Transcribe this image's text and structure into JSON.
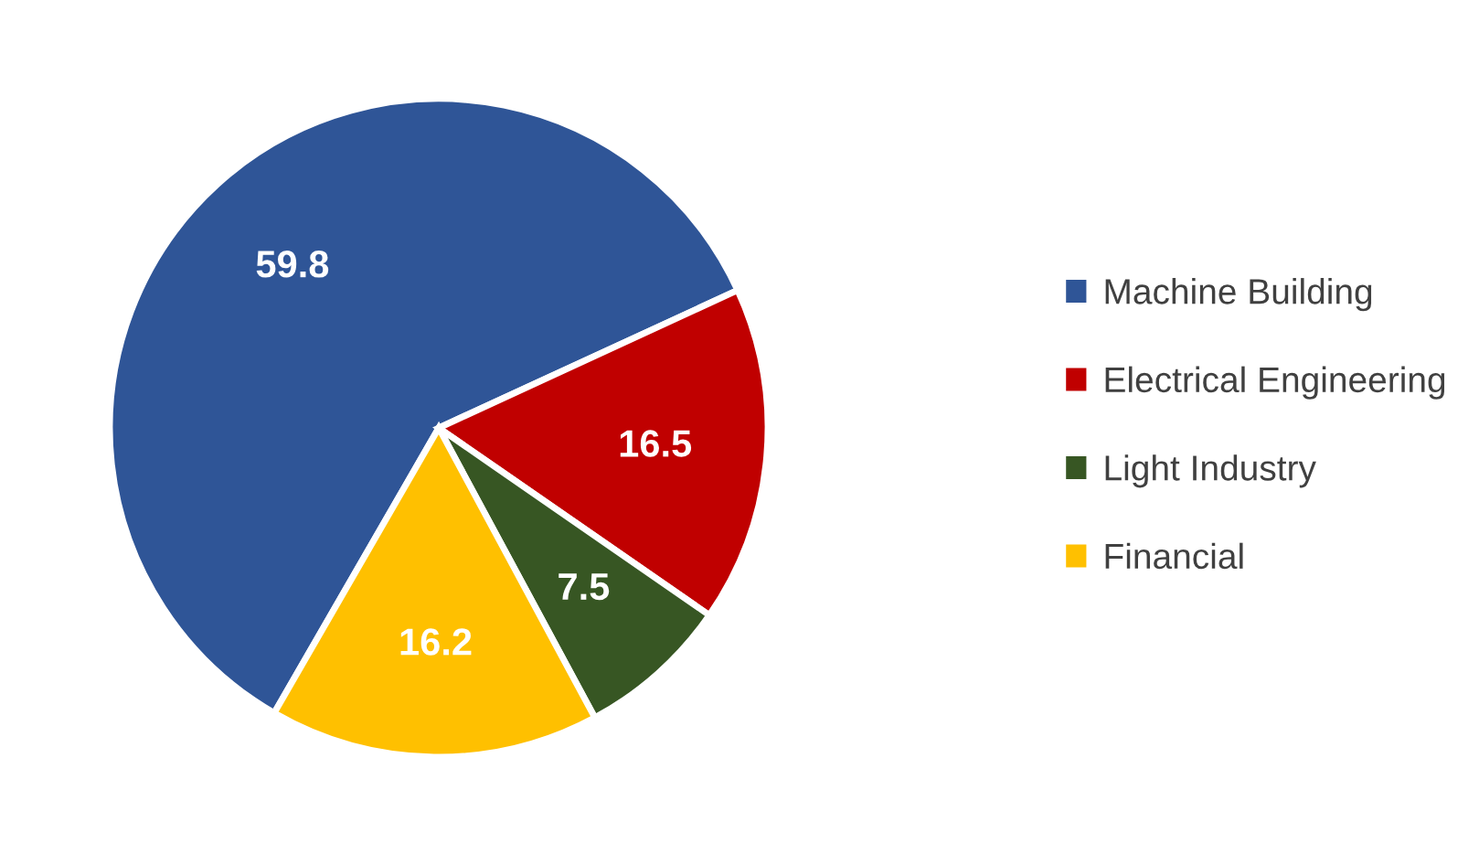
{
  "chart_data": {
    "type": "pie",
    "categories": [
      "Machine Building",
      "Electrical Engineering",
      "Light Industry",
      "Financial"
    ],
    "values": [
      59.8,
      16.5,
      7.5,
      16.2
    ],
    "colors": [
      "#2f5597",
      "#c00000",
      "#375623",
      "#ffc000"
    ],
    "data_labels": true,
    "legend": "right"
  }
}
